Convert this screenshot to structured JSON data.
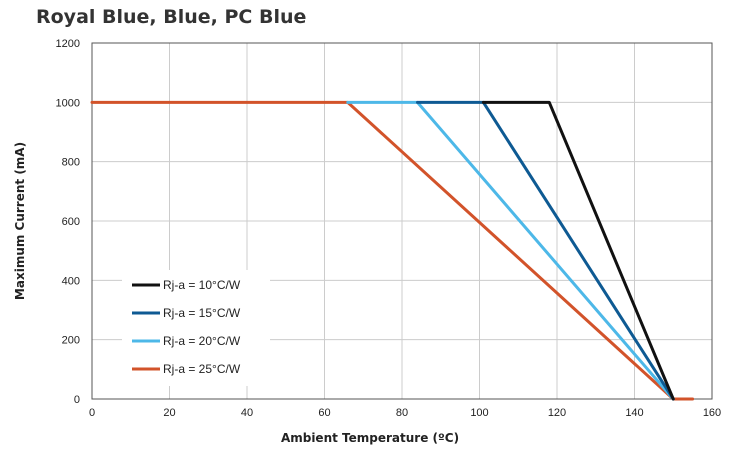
{
  "chart_data": {
    "type": "line",
    "title": "Royal Blue, Blue, PC Blue",
    "xlabel": "Ambient Temperature (ºC)",
    "ylabel": "Maximum Current (mA)",
    "xlim": [
      0,
      160
    ],
    "ylim": [
      0,
      1200
    ],
    "xticks": [
      0,
      20,
      40,
      60,
      80,
      100,
      120,
      140,
      160
    ],
    "yticks": [
      0,
      200,
      400,
      600,
      800,
      1000,
      1200
    ],
    "grid": true,
    "legend": "bottom-left",
    "series": [
      {
        "name": "Rj-a = 25°C/W",
        "color": "#d2532a",
        "points": [
          [
            0,
            1000
          ],
          [
            66,
            1000
          ],
          [
            150,
            0
          ],
          [
            155,
            0
          ]
        ]
      },
      {
        "name": "Rj-a = 20°C/W",
        "color": "#4db8e8",
        "points": [
          [
            66,
            1000
          ],
          [
            84,
            1000
          ],
          [
            150,
            0
          ]
        ]
      },
      {
        "name": "Rj-a = 15°C/W",
        "color": "#0e5a93",
        "points": [
          [
            84,
            1000
          ],
          [
            101,
            1000
          ],
          [
            150,
            0
          ]
        ]
      },
      {
        "name": "Rj-a = 10°C/W",
        "color": "#111111",
        "points": [
          [
            101,
            1000
          ],
          [
            118,
            1000
          ],
          [
            150,
            0
          ]
        ]
      }
    ],
    "legend_order": [
      3,
      2,
      1,
      0
    ]
  }
}
